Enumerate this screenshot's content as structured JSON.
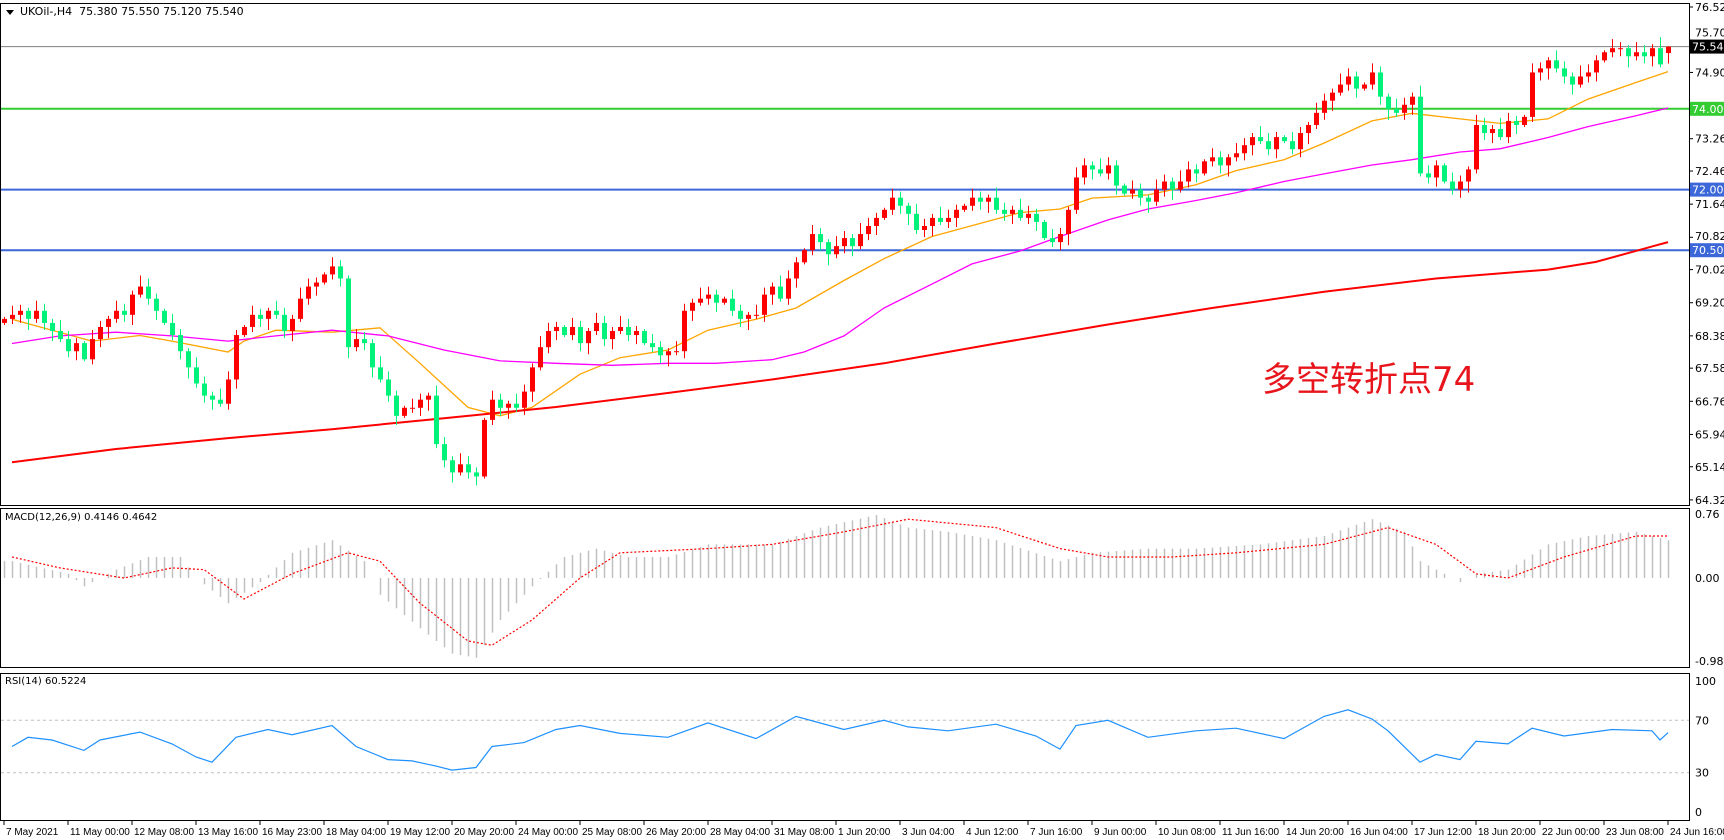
{
  "header": {
    "symbol": "UKOil-,H4",
    "ohlc": "75.380 75.550 75.120 75.540"
  },
  "annotation": "多空转折点74",
  "colors": {
    "up": "#ff0000",
    "down": "#00f27a",
    "ma_fast": "#ffa500",
    "ma_mid": "#ff00ff",
    "ma_slow": "#ff0000",
    "level_green": "#33cc33",
    "level_blue": "#3b67d8",
    "price_line": "#808080",
    "rsi": "#1e90ff",
    "macd_hist": "#c0c0c0",
    "macd_signal": "#ff0000"
  },
  "chart_data": [
    {
      "type": "candlestick",
      "title": "UKOil-,H4",
      "ylim": [
        64.32,
        76.52
      ],
      "y_ticks": [
        "76.520",
        "75.700",
        "74.900",
        "73.260",
        "72.460",
        "71.640",
        "70.820",
        "70.020",
        "69.200",
        "68.380",
        "67.580",
        "66.760",
        "65.940",
        "65.140",
        "64.320"
      ],
      "x_tick_labels": [
        "7 May 2021",
        "11 May 00:00",
        "12 May 08:00",
        "13 May 16:00",
        "16 May 23:00",
        "18 May 04:00",
        "19 May 12:00",
        "20 May 20:00",
        "24 May 00:00",
        "25 May 08:00",
        "26 May 20:00",
        "28 May 04:00",
        "31 May 08:00",
        "1 Jun 20:00",
        "3 Jun 04:00",
        "4 Jun 12:00",
        "7 Jun 16:00",
        "9 Jun 00:00",
        "10 Jun 08:00",
        "11 Jun 16:00",
        "14 Jun 20:00",
        "16 Jun 04:00",
        "17 Jun 12:00",
        "18 Jun 20:00",
        "22 Jun 00:00",
        "23 Jun 08:00",
        "24 Jun 16:00"
      ],
      "closes": [
        68.8,
        68.9,
        69.0,
        68.8,
        69.0,
        68.7,
        68.5,
        68.3,
        68.0,
        68.2,
        67.8,
        68.3,
        68.6,
        68.8,
        69.0,
        68.9,
        69.4,
        69.6,
        69.3,
        69.0,
        68.7,
        68.4,
        68.0,
        67.6,
        67.2,
        66.9,
        66.8,
        66.7,
        67.3,
        68.4,
        68.6,
        68.9,
        68.8,
        69.0,
        68.9,
        68.5,
        68.8,
        69.3,
        69.6,
        69.7,
        69.9,
        70.1,
        69.8,
        68.1,
        68.3,
        68.2,
        67.6,
        67.3,
        66.9,
        66.4,
        66.6,
        66.6,
        66.8,
        66.9,
        65.7,
        65.3,
        65.0,
        65.2,
        65.0,
        64.9,
        66.3,
        66.8,
        66.6,
        66.7,
        66.6,
        67.0,
        67.6,
        68.1,
        68.5,
        68.6,
        68.4,
        68.6,
        68.2,
        68.5,
        68.7,
        68.3,
        68.5,
        68.6,
        68.4,
        68.5,
        68.2,
        68.1,
        67.9,
        68.0,
        68.0,
        69.0,
        69.2,
        69.3,
        69.4,
        69.2,
        69.3,
        69.0,
        68.8,
        68.9,
        68.9,
        69.4,
        69.6,
        69.3,
        69.8,
        70.2,
        70.5,
        70.9,
        70.7,
        70.4,
        70.6,
        70.8,
        70.6,
        70.9,
        71.1,
        71.3,
        71.5,
        71.8,
        71.6,
        71.4,
        71.0,
        71.1,
        71.3,
        71.2,
        71.3,
        71.5,
        71.6,
        71.8,
        71.7,
        71.8,
        71.5,
        71.4,
        71.5,
        71.3,
        71.4,
        71.2,
        70.8,
        70.7,
        70.9,
        71.5,
        72.3,
        72.6,
        72.5,
        72.4,
        72.6,
        72.1,
        71.9,
        72.0,
        71.8,
        71.7,
        72.0,
        72.2,
        72.0,
        72.2,
        72.5,
        72.4,
        72.7,
        72.8,
        72.6,
        72.8,
        72.9,
        73.1,
        73.3,
        73.2,
        73.0,
        73.3,
        73.2,
        73.0,
        73.4,
        73.6,
        73.9,
        74.2,
        74.4,
        74.6,
        74.8,
        74.5,
        74.6,
        74.9,
        74.3,
        74.0,
        73.9,
        74.1,
        74.3,
        72.4,
        72.3,
        72.6,
        72.2,
        72.0,
        72.2,
        72.5,
        73.6,
        73.4,
        73.5,
        73.3,
        73.7,
        73.6,
        73.8,
        74.9,
        75.0,
        75.2,
        75.0,
        74.8,
        74.6,
        74.8,
        74.9,
        75.2,
        75.4,
        75.5,
        75.5,
        75.3,
        75.4,
        75.3,
        75.5,
        75.1,
        75.54
      ],
      "last_candle": {
        "open": 75.38,
        "high": 75.55,
        "low": 75.12,
        "close": 75.54
      },
      "moving_averages": [
        {
          "role": "fast",
          "points": [
            [
              1,
              68.79
            ],
            [
              6,
              68.52
            ],
            [
              11,
              68.25
            ],
            [
              17,
              68.39
            ],
            [
              21,
              68.25
            ],
            [
              28,
              67.98
            ],
            [
              30,
              68.25
            ],
            [
              34,
              68.52
            ],
            [
              41,
              68.47
            ],
            [
              47,
              68.58
            ],
            [
              52,
              67.7
            ],
            [
              58,
              66.61
            ],
            [
              62,
              66.4
            ],
            [
              66,
              66.61
            ],
            [
              72,
              67.43
            ],
            [
              77,
              67.84
            ],
            [
              83,
              68.03
            ],
            [
              88,
              68.52
            ],
            [
              94,
              68.79
            ],
            [
              99,
              69.07
            ],
            [
              105,
              69.75
            ],
            [
              110,
              70.29
            ],
            [
              116,
              70.84
            ],
            [
              121,
              71.11
            ],
            [
              127,
              71.43
            ],
            [
              132,
              71.52
            ],
            [
              136,
              71.79
            ],
            [
              143,
              71.87
            ],
            [
              149,
              72.12
            ],
            [
              154,
              72.47
            ],
            [
              160,
              72.74
            ],
            [
              165,
              73.15
            ],
            [
              171,
              73.7
            ],
            [
              176,
              73.89
            ],
            [
              182,
              73.75
            ],
            [
              187,
              73.64
            ],
            [
              193,
              73.75
            ],
            [
              198,
              74.24
            ],
            [
              204,
              74.65
            ],
            [
              208,
              74.92
            ]
          ]
        },
        {
          "role": "mid",
          "points": [
            [
              1,
              68.19
            ],
            [
              7,
              68.38
            ],
            [
              14,
              68.47
            ],
            [
              21,
              68.38
            ],
            [
              28,
              68.25
            ],
            [
              34,
              68.38
            ],
            [
              41,
              68.52
            ],
            [
              48,
              68.38
            ],
            [
              55,
              68.03
            ],
            [
              62,
              67.76
            ],
            [
              69,
              67.7
            ],
            [
              76,
              67.65
            ],
            [
              83,
              67.7
            ],
            [
              89,
              67.7
            ],
            [
              96,
              67.79
            ],
            [
              100,
              67.98
            ],
            [
              105,
              68.38
            ],
            [
              110,
              69.07
            ],
            [
              116,
              69.66
            ],
            [
              121,
              70.16
            ],
            [
              127,
              70.48
            ],
            [
              132,
              70.84
            ],
            [
              138,
              71.25
            ],
            [
              143,
              71.52
            ],
            [
              149,
              71.73
            ],
            [
              154,
              71.92
            ],
            [
              160,
              72.2
            ],
            [
              165,
              72.39
            ],
            [
              171,
              72.61
            ],
            [
              176,
              72.74
            ],
            [
              182,
              72.93
            ],
            [
              187,
              73.01
            ],
            [
              193,
              73.29
            ],
            [
              198,
              73.56
            ],
            [
              204,
              73.83
            ],
            [
              208,
              74.02
            ]
          ]
        },
        {
          "role": "slow",
          "points": [
            [
              1,
              65.25
            ],
            [
              14,
              65.58
            ],
            [
              28,
              65.85
            ],
            [
              41,
              66.07
            ],
            [
              55,
              66.34
            ],
            [
              69,
              66.62
            ],
            [
              82,
              66.94
            ],
            [
              96,
              67.3
            ],
            [
              110,
              67.7
            ],
            [
              124,
              68.19
            ],
            [
              138,
              68.66
            ],
            [
              151,
              69.07
            ],
            [
              165,
              69.47
            ],
            [
              179,
              69.8
            ],
            [
              193,
              70.02
            ],
            [
              199,
              70.21
            ],
            [
              208,
              70.7
            ]
          ]
        }
      ],
      "levels": [
        {
          "value": 75.54,
          "label": "75.540",
          "role": "price"
        },
        {
          "value": 74.0,
          "label": "74.000",
          "role": "green"
        },
        {
          "value": 72.0,
          "label": "72.000",
          "role": "blue"
        },
        {
          "value": 70.5,
          "label": "70.500",
          "role": "blue"
        }
      ]
    },
    {
      "type": "bar+line",
      "title": "MACD(12,26,9) 0.4146 0.4642",
      "ylim": [
        -0.9862,
        0.76
      ],
      "y_ticks": [
        "0.76",
        "0.00",
        "-0.9862"
      ],
      "histogram_points": [
        [
          1,
          0.2
        ],
        [
          8,
          0.05
        ],
        [
          10,
          -0.1
        ],
        [
          14,
          0.1
        ],
        [
          18,
          0.25
        ],
        [
          22,
          0.25
        ],
        [
          24,
          0
        ],
        [
          28,
          -0.3
        ],
        [
          32,
          -0.05
        ],
        [
          36,
          0.3
        ],
        [
          41,
          0.45
        ],
        [
          45,
          0.2
        ],
        [
          47,
          -0.2
        ],
        [
          52,
          -0.6
        ],
        [
          56,
          -0.9
        ],
        [
          59,
          -0.95
        ],
        [
          62,
          -0.5
        ],
        [
          66,
          -0.1
        ],
        [
          70,
          0.25
        ],
        [
          74,
          0.35
        ],
        [
          78,
          0.25
        ],
        [
          83,
          0.25
        ],
        [
          88,
          0.4
        ],
        [
          96,
          0.4
        ],
        [
          102,
          0.6
        ],
        [
          109,
          0.75
        ],
        [
          113,
          0.6
        ],
        [
          118,
          0.55
        ],
        [
          124,
          0.45
        ],
        [
          132,
          0.2
        ],
        [
          136,
          0.3
        ],
        [
          143,
          0.35
        ],
        [
          149,
          0.35
        ],
        [
          157,
          0.4
        ],
        [
          165,
          0.5
        ],
        [
          171,
          0.7
        ],
        [
          175,
          0.55
        ],
        [
          177,
          0.2
        ],
        [
          182,
          -0.05
        ],
        [
          184,
          0.05
        ],
        [
          188,
          0.1
        ],
        [
          193,
          0.4
        ],
        [
          198,
          0.5
        ],
        [
          204,
          0.55
        ],
        [
          208,
          0.45
        ]
      ],
      "signal_points": [
        [
          1,
          0.25
        ],
        [
          7,
          0.12
        ],
        [
          15,
          0.0
        ],
        [
          21,
          0.12
        ],
        [
          25,
          0.1
        ],
        [
          30,
          -0.25
        ],
        [
          36,
          0.05
        ],
        [
          43,
          0.3
        ],
        [
          47,
          0.2
        ],
        [
          52,
          -0.3
        ],
        [
          58,
          -0.75
        ],
        [
          61,
          -0.8
        ],
        [
          66,
          -0.5
        ],
        [
          72,
          0.0
        ],
        [
          77,
          0.3
        ],
        [
          88,
          0.35
        ],
        [
          96,
          0.4
        ],
        [
          105,
          0.55
        ],
        [
          113,
          0.7
        ],
        [
          124,
          0.6
        ],
        [
          132,
          0.35
        ],
        [
          138,
          0.25
        ],
        [
          146,
          0.25
        ],
        [
          154,
          0.3
        ],
        [
          165,
          0.4
        ],
        [
          173,
          0.6
        ],
        [
          179,
          0.4
        ],
        [
          184,
          0.05
        ],
        [
          188,
          0.0
        ],
        [
          195,
          0.25
        ],
        [
          204,
          0.5
        ],
        [
          208,
          0.5
        ]
      ]
    },
    {
      "type": "line",
      "title": "RSI(14) 60.5224",
      "ylim": [
        0,
        100
      ],
      "y_ticks": [
        "100",
        "70",
        "30",
        "0"
      ],
      "levels": [
        70,
        30
      ],
      "points": [
        [
          1,
          50
        ],
        [
          3,
          57
        ],
        [
          6,
          55
        ],
        [
          10,
          47
        ],
        [
          12,
          55
        ],
        [
          17,
          61
        ],
        [
          21,
          52
        ],
        [
          24,
          42
        ],
        [
          26,
          38
        ],
        [
          29,
          57
        ],
        [
          33,
          63
        ],
        [
          36,
          59
        ],
        [
          41,
          66
        ],
        [
          44,
          50
        ],
        [
          48,
          40
        ],
        [
          51,
          39
        ],
        [
          54,
          35
        ],
        [
          56,
          32
        ],
        [
          59,
          34
        ],
        [
          61,
          50
        ],
        [
          65,
          53
        ],
        [
          69,
          63
        ],
        [
          72,
          66
        ],
        [
          77,
          60
        ],
        [
          83,
          57
        ],
        [
          88,
          68
        ],
        [
          94,
          56
        ],
        [
          99,
          73
        ],
        [
          105,
          63
        ],
        [
          110,
          70
        ],
        [
          113,
          65
        ],
        [
          118,
          62
        ],
        [
          124,
          67
        ],
        [
          129,
          58
        ],
        [
          132,
          48
        ],
        [
          134,
          66
        ],
        [
          138,
          70
        ],
        [
          143,
          57
        ],
        [
          149,
          62
        ],
        [
          154,
          64
        ],
        [
          160,
          56
        ],
        [
          165,
          73
        ],
        [
          168,
          78
        ],
        [
          171,
          71
        ],
        [
          173,
          62
        ],
        [
          177,
          38
        ],
        [
          179,
          44
        ],
        [
          182,
          40
        ],
        [
          184,
          54
        ],
        [
          188,
          52
        ],
        [
          191,
          64
        ],
        [
          195,
          58
        ],
        [
          201,
          63
        ],
        [
          206,
          62
        ],
        [
          207,
          55
        ],
        [
          208,
          60.5
        ]
      ]
    }
  ]
}
